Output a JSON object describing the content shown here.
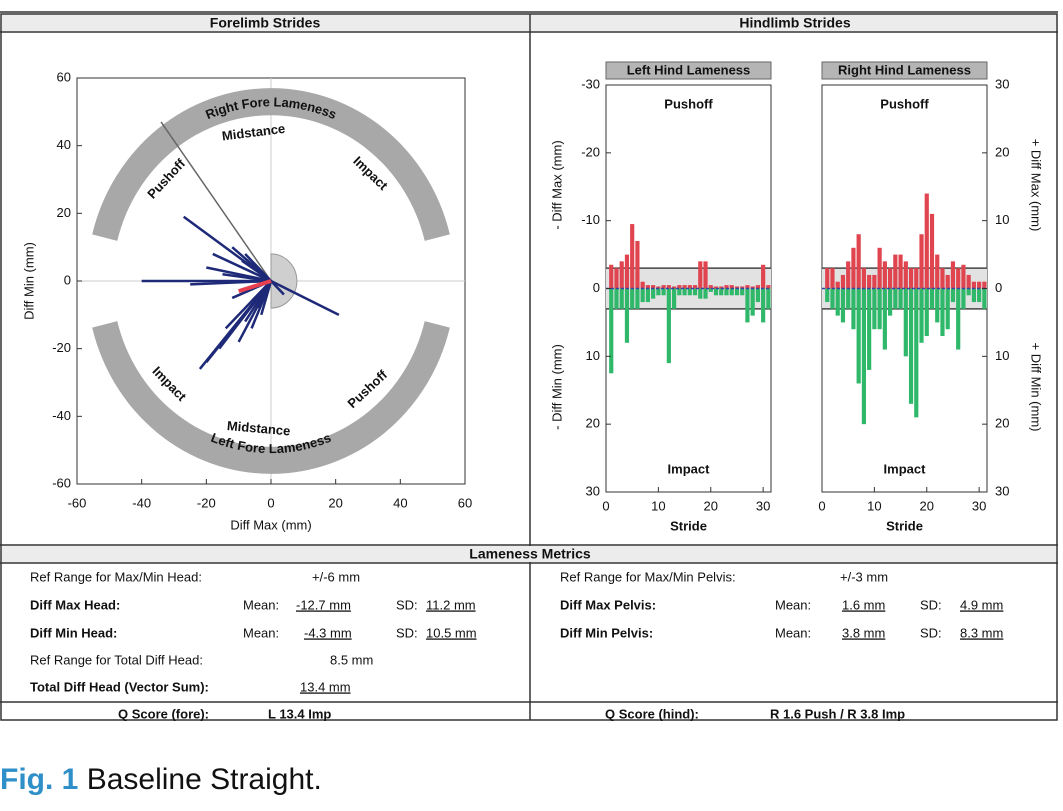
{
  "sections": {
    "forelimb": "Forelimb Strides",
    "hindlimb": "Hindlimb Strides",
    "metrics": "Lameness Metrics"
  },
  "chart_data": [
    {
      "type": "vector",
      "xlabel": "Diff Max (mm)",
      "ylabel": "Diff Min (mm)",
      "xlim": [
        -60,
        60
      ],
      "ylim": [
        -60,
        60
      ],
      "xticks": [
        -60,
        -40,
        -20,
        0,
        20,
        40,
        60
      ],
      "yticks": [
        -60,
        -40,
        -20,
        0,
        20,
        40,
        60
      ],
      "arcs": [
        {
          "label": "Right Fore Lameness",
          "phases": [
            "Pushoff",
            "Midstance",
            "Impact"
          ]
        },
        {
          "label": "Left Fore Lameness",
          "phases": [
            "Impact",
            "Midstance",
            "Pushoff"
          ]
        }
      ],
      "vectors": {
        "color": "#1e2a78",
        "x": [
          -40,
          -27,
          -22,
          -20,
          -16,
          -14,
          -10,
          -8,
          -6,
          -4,
          21,
          -20,
          -18,
          -12,
          -8,
          -15,
          -25,
          -6,
          -3,
          -12,
          -9,
          4
        ],
        "y": [
          0,
          19,
          -26,
          -24,
          -20,
          -14,
          -18,
          -12,
          -14,
          -8,
          -10,
          4,
          8,
          10,
          8,
          2,
          -1,
          -6,
          -10,
          -5,
          6,
          -4
        ]
      },
      "mean_vector": {
        "color": "#e8404f",
        "x": -10,
        "y": -3
      },
      "reference_vector": {
        "color": "#666666",
        "x": -34,
        "y": 47
      }
    },
    {
      "type": "bar",
      "title": "Left Hind Lameness",
      "xlabel": "Stride",
      "y_side": "left",
      "y_inverted": true,
      "ylabel_upper": "- Diff Max (mm)",
      "ylabel_lower": "- Diff Min (mm)",
      "annotations": [
        "Pushoff",
        "Impact"
      ],
      "xlim": [
        0,
        31.5
      ],
      "xticks": [
        0,
        10,
        20,
        30
      ],
      "ylim": [
        -30,
        30
      ],
      "yticks": [
        -30,
        -20,
        -10,
        0,
        10,
        20,
        30
      ],
      "ref_lines": [
        -3,
        3
      ],
      "x": [
        1,
        2,
        3,
        4,
        5,
        6,
        7,
        8,
        9,
        10,
        11,
        12,
        13,
        14,
        15,
        16,
        17,
        18,
        19,
        20,
        21,
        22,
        23,
        24,
        25,
        26,
        27,
        28,
        29,
        30,
        31
      ],
      "series": [
        {
          "color": "#e0454f",
          "values": [
            -3.5,
            -3,
            -4,
            -5,
            -9.5,
            -7,
            -1,
            -0.5,
            -0.5,
            -0.3,
            -0.5,
            -0.5,
            -0.3,
            -0.5,
            -0.5,
            -0.5,
            -0.5,
            -4,
            -4,
            -0.5,
            -0.3,
            -0.3,
            -0.5,
            -0.5,
            -0.3,
            -0.3,
            -0.5,
            -0.3,
            -0.5,
            -3.5,
            -0.5
          ]
        },
        {
          "color": "#2fb86a",
          "values": [
            12.5,
            3,
            3,
            8,
            3,
            3,
            2,
            2,
            1.5,
            1,
            1,
            11,
            3,
            1,
            1,
            1,
            1,
            1.5,
            1.5,
            0.5,
            1,
            1,
            1,
            1,
            1,
            1,
            5,
            4,
            2,
            5,
            3
          ]
        }
      ]
    },
    {
      "type": "bar",
      "title": "Right Hind Lameness",
      "xlabel": "Stride",
      "y_side": "right",
      "y_inverted": true,
      "ylabel_upper": "+ Diff Max (mm)",
      "ylabel_lower": "+ Diff Min (mm)",
      "annotations": [
        "Pushoff",
        "Impact"
      ],
      "xlim": [
        0,
        31.5
      ],
      "xticks": [
        0,
        10,
        20,
        30
      ],
      "ylim": [
        -30,
        30
      ],
      "yticks": [
        {
          "value": -30,
          "label": "30"
        },
        {
          "value": -20,
          "label": "20"
        },
        {
          "value": -10,
          "label": "10"
        },
        0,
        10,
        20,
        30
      ],
      "ref_lines": [
        -3,
        3
      ],
      "x": [
        1,
        2,
        3,
        4,
        5,
        6,
        7,
        8,
        9,
        10,
        11,
        12,
        13,
        14,
        15,
        16,
        17,
        18,
        19,
        20,
        21,
        22,
        23,
        24,
        25,
        26,
        27,
        28,
        29,
        30,
        31
      ],
      "series": [
        {
          "color": "#e0454f",
          "values": [
            -3,
            -3,
            -1,
            -2,
            -4,
            -6,
            -8,
            -3,
            -2,
            -2,
            -6,
            -4,
            -3,
            -5,
            -5,
            -4,
            -3,
            -3,
            -8,
            -14,
            -11,
            -5,
            -3,
            -2,
            -4,
            -3,
            -3.5,
            -2,
            -1,
            -1,
            -1
          ]
        },
        {
          "color": "#2fb86a",
          "values": [
            2,
            3,
            4,
            5,
            3,
            6,
            14,
            20,
            12,
            6,
            6,
            9,
            4,
            3,
            3,
            10,
            17,
            19,
            8,
            7,
            3,
            5,
            7,
            6,
            2,
            9,
            3,
            1,
            2,
            2,
            3
          ]
        }
      ]
    }
  ],
  "metrics": {
    "head": {
      "ref_range": {
        "label": "Ref Range for Max/Min Head:",
        "value": "+/-6 mm"
      },
      "diff_max": {
        "label": "Diff Max Head:",
        "mean_label": "Mean:",
        "mean": "-12.7 mm",
        "sd_label": "SD:",
        "sd": "11.2 mm"
      },
      "diff_min": {
        "label": "Diff Min Head:",
        "mean_label": "Mean:",
        "mean": "-4.3 mm",
        "sd_label": "SD:",
        "sd": "10.5 mm"
      },
      "ref_total": {
        "label": "Ref Range for Total Diff Head:",
        "value": "8.5 mm"
      },
      "total": {
        "label": "Total Diff Head (Vector Sum):",
        "value": "13.4 mm"
      }
    },
    "pelvis": {
      "ref_range": {
        "label": "Ref Range for Max/Min Pelvis:",
        "value": "+/-3 mm"
      },
      "diff_max": {
        "label": "Diff Max Pelvis:",
        "mean_label": "Mean:",
        "mean": "1.6 mm",
        "sd_label": "SD:",
        "sd": "4.9 mm"
      },
      "diff_min": {
        "label": "Diff Min Pelvis:",
        "mean_label": "Mean:",
        "mean": "3.8 mm",
        "sd_label": "SD:",
        "sd": "8.3 mm"
      }
    }
  },
  "q_scores": {
    "fore": {
      "label": "Q Score (fore):",
      "value": "L 13.4 Imp"
    },
    "hind": {
      "label": "Q Score (hind):",
      "value": "R 1.6 Push / R 3.8 Imp"
    }
  },
  "caption": {
    "number": "Fig. 1",
    "text": "Baseline Straight."
  }
}
